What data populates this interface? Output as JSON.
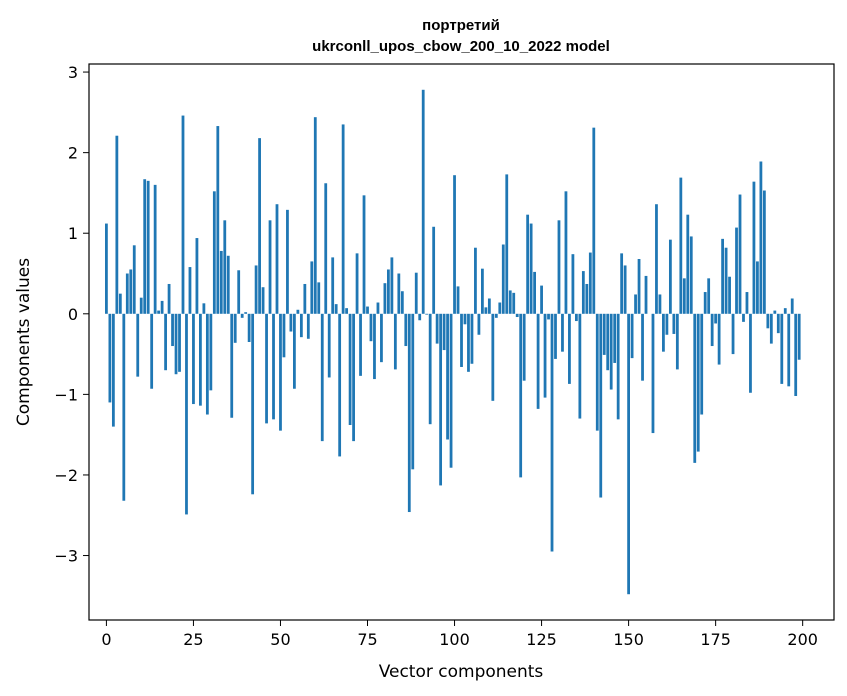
{
  "chart_data": {
    "type": "bar",
    "title": "портретий",
    "subtitle": "ukrconll_upos_cbow_200_10_2022 model",
    "xlabel": "Vector components",
    "ylabel": "Components values",
    "xlim": [
      -5,
      209
    ],
    "ylim": [
      -3.8,
      3.1
    ],
    "xticks": [
      0,
      25,
      50,
      75,
      100,
      125,
      150,
      175,
      200
    ],
    "yticks": [
      -3,
      -2,
      -1,
      0,
      1,
      2,
      3
    ],
    "xtick_labels": [
      "0",
      "25",
      "50",
      "75",
      "100",
      "125",
      "150",
      "175",
      "200"
    ],
    "ytick_labels": [
      "−3",
      "−2",
      "−1",
      "0",
      "1",
      "2",
      "3"
    ],
    "grid": false,
    "bar_color": "#1f77b4",
    "values": [
      1.12,
      -1.1,
      -1.4,
      2.21,
      0.25,
      -2.32,
      0.5,
      0.55,
      0.85,
      -0.78,
      0.2,
      1.67,
      1.65,
      -0.93,
      1.6,
      0.04,
      0.16,
      -0.7,
      0.37,
      -0.4,
      -0.75,
      -0.72,
      2.46,
      -2.49,
      0.58,
      -1.12,
      0.94,
      -1.14,
      0.13,
      -1.25,
      -0.95,
      1.52,
      2.33,
      0.78,
      1.16,
      0.72,
      -1.29,
      -0.36,
      0.54,
      -0.05,
      0.02,
      -0.35,
      -2.24,
      0.6,
      2.18,
      0.33,
      -1.36,
      1.16,
      -1.31,
      1.36,
      -1.45,
      -0.54,
      1.29,
      -0.22,
      -0.93,
      0.05,
      -0.29,
      0.37,
      -0.31,
      0.65,
      2.44,
      0.39,
      -1.58,
      1.62,
      -0.79,
      0.7,
      0.12,
      -1.77,
      2.35,
      0.07,
      -1.38,
      -1.58,
      0.75,
      -0.77,
      1.47,
      0.09,
      -0.34,
      -0.81,
      0.14,
      -0.6,
      0.38,
      0.55,
      0.7,
      -0.69,
      0.5,
      0.28,
      -0.4,
      -2.46,
      -1.93,
      0.51,
      -0.08,
      2.78,
      -0.01,
      -1.37,
      1.08,
      -0.37,
      -2.13,
      -0.45,
      -1.56,
      -1.91,
      1.72,
      0.34,
      -0.66,
      -0.13,
      -0.72,
      -0.62,
      0.82,
      -0.26,
      0.56,
      0.08,
      0.19,
      -1.08,
      -0.05,
      0.14,
      0.86,
      1.73,
      0.29,
      0.26,
      -0.04,
      -2.03,
      -0.83,
      1.23,
      1.12,
      0.52,
      -1.18,
      0.35,
      -1.04,
      -0.07,
      -2.95,
      -0.56,
      1.16,
      -0.47,
      1.52,
      -0.87,
      0.74,
      -0.09,
      -1.3,
      0.53,
      0.37,
      0.76,
      2.31,
      -1.45,
      -2.28,
      -0.51,
      -0.7,
      -0.94,
      -0.61,
      -1.31,
      0.75,
      0.6,
      -3.48,
      -0.55,
      0.24,
      0.68,
      -0.83,
      0.47,
      0.0,
      -1.48,
      1.36,
      0.24,
      -0.47,
      -0.26,
      0.92,
      -0.25,
      -0.69,
      1.69,
      0.44,
      1.23,
      0.96,
      -1.85,
      -1.71,
      -1.25,
      0.27,
      0.44,
      -0.4,
      -0.12,
      -0.63,
      0.93,
      0.82,
      0.46,
      -0.5,
      1.07,
      1.48,
      -0.1,
      0.27,
      -0.98,
      1.64,
      0.65,
      1.89,
      1.53,
      -0.18,
      -0.37,
      0.04,
      -0.24,
      -0.87,
      0.07,
      -0.9,
      0.19,
      -1.02,
      -0.57
    ]
  }
}
